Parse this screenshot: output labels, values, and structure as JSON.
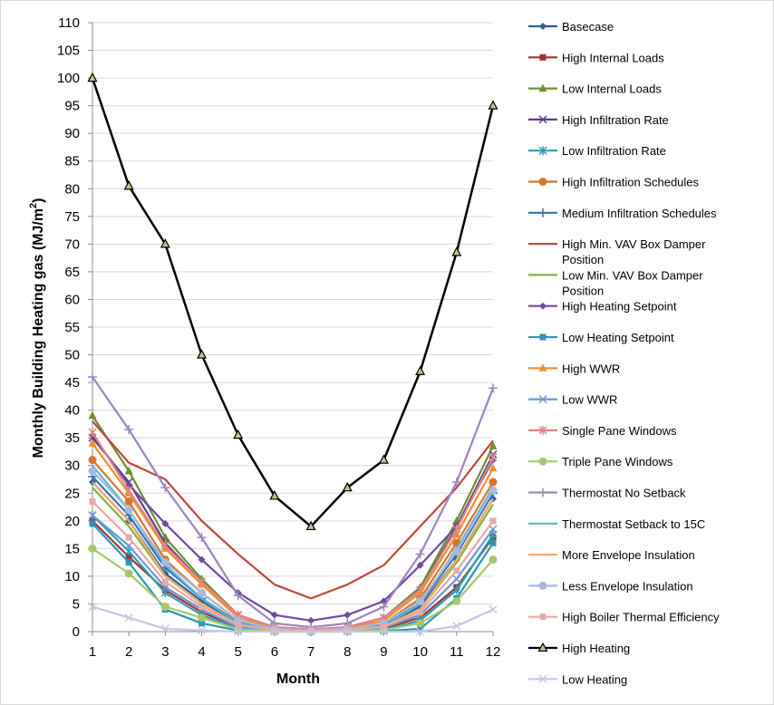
{
  "chart_data": {
    "type": "line",
    "xlabel": "Month",
    "ylabel": "Monthly  Building Heating gas (MJ/m²)",
    "ylabel_parts": {
      "main": "Monthly  Building Heating gas (MJ/m",
      "sup": "2",
      "close": ")"
    },
    "x": [
      1,
      2,
      3,
      4,
      5,
      6,
      7,
      8,
      9,
      10,
      11,
      12
    ],
    "xlim": [
      1,
      12
    ],
    "ylim": [
      0,
      110
    ],
    "ytick_step": 5,
    "grid": "horizontal",
    "legend_position": "right",
    "series": [
      {
        "name": "Basecase",
        "color": "#2e5f99",
        "marker": "diamond",
        "values": [
          27.0,
          20.0,
          10.5,
          5.5,
          1.5,
          0.4,
          0.2,
          0.4,
          1.2,
          4.5,
          13.0,
          24.0
        ]
      },
      {
        "name": "High Internal Loads",
        "color": "#9e3532",
        "marker": "square",
        "values": [
          20.0,
          13.5,
          7.5,
          3.5,
          0.8,
          0.2,
          0.1,
          0.2,
          0.6,
          2.5,
          8.0,
          17.0
        ]
      },
      {
        "name": "Low Internal Loads",
        "color": "#6f8f2d",
        "marker": "triangle",
        "values": [
          39.0,
          29.0,
          17.0,
          9.5,
          3.0,
          0.8,
          0.4,
          0.8,
          2.5,
          8.0,
          20.0,
          33.5
        ]
      },
      {
        "name": "High Infiltration Rate",
        "color": "#5c3f86",
        "marker": "x",
        "values": [
          35.0,
          27.0,
          16.0,
          9.0,
          3.0,
          0.8,
          0.4,
          0.8,
          2.5,
          7.5,
          19.0,
          32.0
        ]
      },
      {
        "name": "Low Infiltration Rate",
        "color": "#2f9eb4",
        "marker": "star",
        "values": [
          21.0,
          14.5,
          7.0,
          3.0,
          0.5,
          0.1,
          0.0,
          0.1,
          0.3,
          2.0,
          7.5,
          17.5
        ]
      },
      {
        "name": "High Infiltration Schedules",
        "color": "#d9742a",
        "marker": "circle",
        "values": [
          31.0,
          23.5,
          13.0,
          7.0,
          2.0,
          0.5,
          0.2,
          0.5,
          1.5,
          6.0,
          16.0,
          27.0
        ]
      },
      {
        "name": "Medium Infiltration Schedules",
        "color": "#3570b7",
        "marker": "plus",
        "values": [
          28.0,
          21.0,
          11.5,
          6.0,
          1.7,
          0.4,
          0.2,
          0.4,
          1.3,
          5.0,
          14.0,
          25.0
        ]
      },
      {
        "name": "High Min. VAV Box Damper Position",
        "color": "#c0463d",
        "marker": "none",
        "values": [
          38.0,
          30.5,
          27.5,
          20.0,
          14.0,
          8.5,
          6.0,
          8.5,
          12.0,
          19.0,
          26.0,
          34.5
        ]
      },
      {
        "name": "Low Min. VAV Box Damper Position",
        "color": "#86b13b",
        "marker": "none",
        "values": [
          26.0,
          19.0,
          10.0,
          5.0,
          1.3,
          0.3,
          0.1,
          0.3,
          1.0,
          4.0,
          12.5,
          23.0
        ]
      },
      {
        "name": "High Heating Setpoint",
        "color": "#6f4aa0",
        "marker": "diamond",
        "values": [
          35.5,
          26.5,
          19.5,
          13.0,
          7.0,
          3.0,
          2.0,
          3.0,
          5.5,
          12.0,
          19.0,
          31.0
        ]
      },
      {
        "name": "Low Heating Setpoint",
        "color": "#2b97b8",
        "marker": "square",
        "values": [
          19.5,
          12.5,
          4.0,
          1.5,
          0.2,
          0.0,
          0.0,
          0.0,
          0.1,
          0.5,
          6.0,
          16.0
        ]
      },
      {
        "name": "High WWR",
        "color": "#f38d2e",
        "marker": "triangle",
        "values": [
          34.0,
          25.0,
          15.0,
          8.5,
          2.5,
          0.6,
          0.3,
          0.6,
          2.0,
          7.0,
          17.5,
          29.5
        ]
      },
      {
        "name": "Low WWR",
        "color": "#6f96d6",
        "marker": "x",
        "values": [
          21.0,
          15.5,
          8.0,
          4.0,
          0.8,
          0.2,
          0.1,
          0.2,
          0.7,
          3.0,
          9.5,
          18.5
        ]
      },
      {
        "name": "Single Pane Windows",
        "color": "#e08585",
        "marker": "star",
        "values": [
          36.0,
          25.5,
          15.5,
          9.0,
          3.0,
          0.8,
          0.4,
          0.8,
          2.5,
          7.5,
          18.5,
          31.5
        ]
      },
      {
        "name": "Triple Pane Windows",
        "color": "#a5c96a",
        "marker": "circle",
        "values": [
          15.0,
          10.5,
          4.5,
          2.5,
          0.4,
          0.1,
          0.0,
          0.1,
          0.3,
          1.5,
          5.5,
          13.0
        ]
      },
      {
        "name": "Thermostat No Setback",
        "color": "#9b86bf",
        "marker": "plus",
        "values": [
          46.0,
          36.5,
          26.0,
          17.0,
          6.5,
          1.5,
          0.8,
          1.5,
          4.5,
          14.0,
          27.0,
          44.0
        ]
      },
      {
        "name": "Thermostat Setback to 15C",
        "color": "#58b6cb",
        "marker": "none",
        "values": [
          30.0,
          22.0,
          12.0,
          6.0,
          1.5,
          0.3,
          0.1,
          0.3,
          1.0,
          5.0,
          15.0,
          26.0
        ]
      },
      {
        "name": "More Envelope Insulation",
        "color": "#f7a969",
        "marker": "none",
        "values": [
          27.0,
          20.0,
          10.0,
          5.0,
          1.2,
          0.3,
          0.1,
          0.3,
          0.9,
          4.0,
          13.0,
          24.0
        ]
      },
      {
        "name": "Less Envelope Insulation",
        "color": "#a7b9e0",
        "marker": "circle",
        "values": [
          29.0,
          22.0,
          12.5,
          7.0,
          2.0,
          0.5,
          0.2,
          0.5,
          1.5,
          5.5,
          14.5,
          25.5
        ]
      },
      {
        "name": "High Boiler Thermal Efficiency",
        "color": "#e6aaa9",
        "marker": "square",
        "values": [
          23.5,
          17.0,
          9.0,
          4.5,
          1.2,
          0.3,
          0.1,
          0.3,
          0.9,
          3.5,
          11.0,
          20.0
        ]
      },
      {
        "name": "High Heating",
        "color": "#000000",
        "marker": "triangle-outline",
        "values": [
          100.0,
          80.5,
          70.0,
          50.0,
          35.5,
          24.5,
          19.0,
          26.0,
          31.0,
          47.0,
          68.5,
          95.0
        ]
      },
      {
        "name": "Low Heating",
        "color": "#c2c8e6",
        "marker": "x",
        "values": [
          4.5,
          2.5,
          0.5,
          0.2,
          0.0,
          0.0,
          0.0,
          0.0,
          0.0,
          0.0,
          1.0,
          4.0
        ]
      }
    ]
  }
}
